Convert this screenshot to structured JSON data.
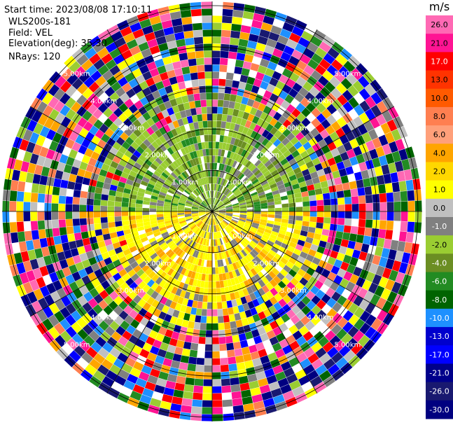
{
  "header": {
    "start_time": "Start time: 2023/08/08 17:10:11",
    "site": "WLS200s-181",
    "field": "Field: VEL",
    "elevation": "Elevation(deg): 35.30",
    "nrays": "NRays: 120"
  },
  "colorbar": {
    "unit": "m/s",
    "ticks": [
      "26.0",
      "21.0",
      "17.0",
      "13.0",
      "10.0",
      "8.0",
      "6.0",
      "4.0",
      "2.0",
      "1.0",
      "0.0",
      "-1.0",
      "-2.0",
      "-4.0",
      "-6.0",
      "-8.0",
      "-10.0",
      "-13.0",
      "-17.0",
      "-21.0",
      "-26.0",
      "-30.0"
    ],
    "colors": [
      "#ff69b4",
      "#ff1493",
      "#ff0000",
      "#ff3300",
      "#ff5a00",
      "#ff7f50",
      "#ffa07a",
      "#ffa500",
      "#ffd700",
      "#ffff00",
      "#c0c0c0",
      "#808080",
      "#9acd32",
      "#6b8e23",
      "#228b22",
      "#006400",
      "#1e90ff",
      "#0000cd",
      "#0000ff",
      "#00008b",
      "#191970",
      "#000080"
    ]
  },
  "chart_data": {
    "type": "heatmap",
    "title": "",
    "field": "VEL",
    "nrays": 120,
    "range_ring_labels": [
      "1.00km",
      "2.00km",
      "3.00km",
      "4.00km",
      "5.00km"
    ],
    "range_rings_km": [
      1,
      2,
      3,
      4,
      5
    ],
    "color_scale": {
      "unit": "m/s",
      "min": -30.0,
      "max": 26.0
    }
  }
}
